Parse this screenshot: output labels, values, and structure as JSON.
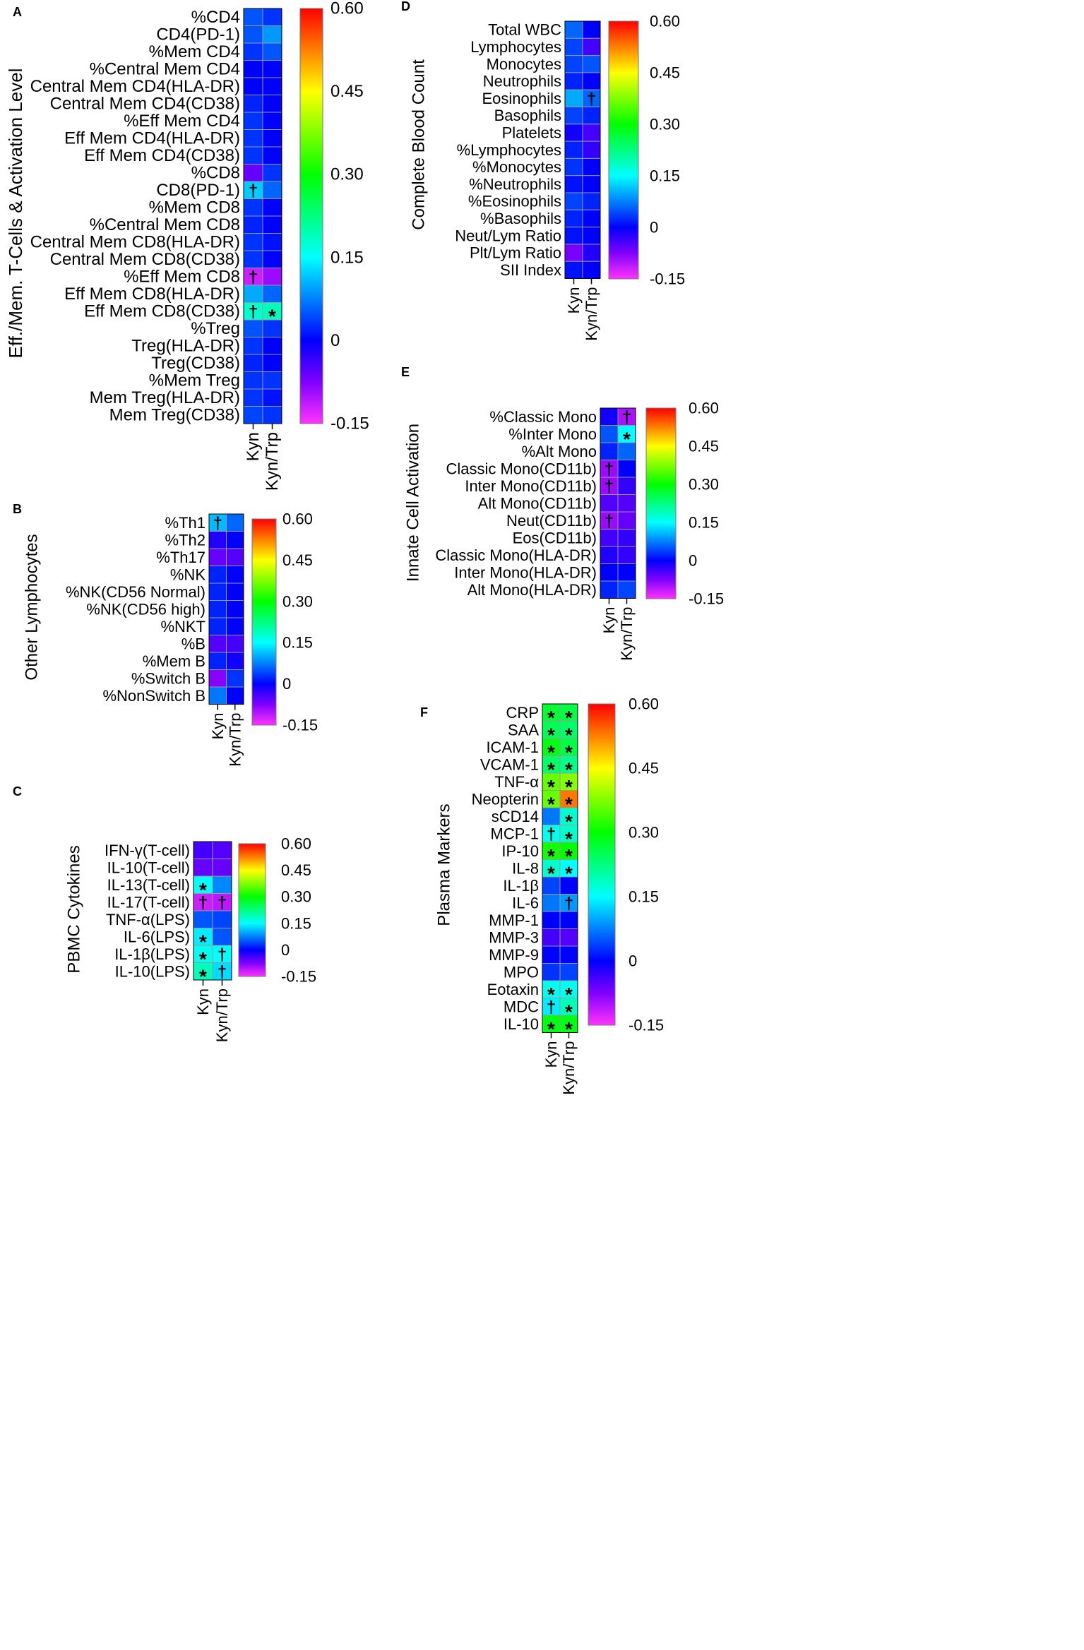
{
  "figure": {
    "colorbar": {
      "min": -0.15,
      "max": 0.6,
      "tick_labels": [
        "0.60",
        "0.45",
        "0.30",
        "0.15",
        "0",
        "-0.15"
      ],
      "tick_values": [
        0.6,
        0.45,
        0.3,
        0.15,
        0,
        -0.15
      ],
      "stops": [
        {
          "v": -0.15,
          "color": "#ff33ff"
        },
        {
          "v": -0.075,
          "color": "#8000ff"
        },
        {
          "v": 0.0,
          "color": "#0000ff"
        },
        {
          "v": 0.075,
          "color": "#0080ff"
        },
        {
          "v": 0.15,
          "color": "#00ffff"
        },
        {
          "v": 0.3,
          "color": "#00ff00"
        },
        {
          "v": 0.45,
          "color": "#ffff00"
        },
        {
          "v": 0.525,
          "color": "#ff8000"
        },
        {
          "v": 0.6,
          "color": "#ff0000"
        }
      ]
    },
    "cell_border_color": "#999999"
  },
  "chart_data": [
    {
      "type": "heatmap",
      "panel": "A",
      "ylabel": "Eff./Mem. T-Cells & Activation Level",
      "columns": [
        "Kyn",
        "Kyn/Trp"
      ],
      "rows": [
        "%CD4",
        "CD4(PD-1)",
        "%Mem CD4",
        "%Central Mem CD4",
        "Central Mem CD4(HLA-DR)",
        "Central Mem CD4(CD38)",
        "%Eff Mem CD4",
        "Eff Mem CD4(HLA-DR)",
        "Eff Mem CD4(CD38)",
        "%CD8",
        "CD8(PD-1)",
        "%Mem CD8",
        "%Central Mem CD8",
        "Central Mem CD8(HLA-DR)",
        "Central Mem CD8(CD38)",
        "%Eff Mem CD8",
        "Eff Mem CD8(HLA-DR)",
        "Eff Mem CD8(CD38)",
        "%Treg",
        "Treg(HLA-DR)",
        "Treg(CD38)",
        "%Mem Treg",
        "Mem Treg(HLA-DR)",
        "Mem Treg(CD38)"
      ],
      "values": [
        [
          0.05,
          0.03
        ],
        [
          0.05,
          0.09
        ],
        [
          0.03,
          0.05
        ],
        [
          0.0,
          0.0
        ],
        [
          0.0,
          0.0
        ],
        [
          0.02,
          0.0
        ],
        [
          0.03,
          0.0
        ],
        [
          0.03,
          0.0
        ],
        [
          0.03,
          0.0
        ],
        [
          -0.06,
          0.03
        ],
        [
          0.12,
          0.06
        ],
        [
          0.03,
          0.0
        ],
        [
          0.02,
          0.0
        ],
        [
          0.03,
          0.01
        ],
        [
          0.03,
          0.0
        ],
        [
          -0.12,
          -0.09
        ],
        [
          0.1,
          0.06
        ],
        [
          0.18,
          0.19
        ],
        [
          0.05,
          0.03
        ],
        [
          0.03,
          0.0
        ],
        [
          0.02,
          0.0
        ],
        [
          0.03,
          0.03
        ],
        [
          0.03,
          0.01
        ],
        [
          0.04,
          0.03
        ]
      ],
      "markers": [
        [
          "",
          ""
        ],
        [
          "",
          ""
        ],
        [
          "",
          ""
        ],
        [
          "",
          ""
        ],
        [
          "",
          ""
        ],
        [
          "",
          ""
        ],
        [
          "",
          ""
        ],
        [
          "",
          ""
        ],
        [
          "",
          ""
        ],
        [
          "",
          ""
        ],
        [
          "†",
          ""
        ],
        [
          "",
          ""
        ],
        [
          "",
          ""
        ],
        [
          "",
          ""
        ],
        [
          "",
          ""
        ],
        [
          "†",
          ""
        ],
        [
          "",
          ""
        ],
        [
          "†",
          "*"
        ],
        [
          "",
          ""
        ],
        [
          "",
          ""
        ],
        [
          "",
          ""
        ],
        [
          "",
          ""
        ],
        [
          "",
          ""
        ],
        [
          "",
          ""
        ]
      ]
    },
    {
      "type": "heatmap",
      "panel": "B",
      "ylabel": "Other Lymphocytes",
      "columns": [
        "Kyn",
        "Kyn/Trp"
      ],
      "rows": [
        "%Th1",
        "%Th2",
        "%Th17",
        "%NK",
        "%NK(CD56 Normal)",
        "%NK(CD56 high)",
        "%NKT",
        "%B",
        "%Mem B",
        "%Switch B",
        "%NonSwitch B"
      ],
      "values": [
        [
          0.11,
          0.06
        ],
        [
          -0.02,
          0.0
        ],
        [
          -0.06,
          -0.05
        ],
        [
          0.02,
          0.0
        ],
        [
          0.02,
          0.0
        ],
        [
          0.02,
          0.0
        ],
        [
          0.02,
          0.0
        ],
        [
          -0.05,
          -0.04
        ],
        [
          0.02,
          -0.01
        ],
        [
          -0.08,
          0.03
        ],
        [
          0.07,
          0.0
        ]
      ],
      "markers": [
        [
          "†",
          ""
        ],
        [
          "",
          ""
        ],
        [
          "",
          ""
        ],
        [
          "",
          ""
        ],
        [
          "",
          ""
        ],
        [
          "",
          ""
        ],
        [
          "",
          ""
        ],
        [
          "",
          ""
        ],
        [
          "",
          ""
        ],
        [
          "",
          ""
        ],
        [
          "",
          ""
        ]
      ]
    },
    {
      "type": "heatmap",
      "panel": "C",
      "ylabel": "PBMC Cytokines",
      "columns": [
        "Kyn",
        "Kyn/Trp"
      ],
      "rows": [
        "IFN-γ(T-cell)",
        "IL-10(T-cell)",
        "IL-13(T-cell)",
        "IL-17(T-cell)",
        "TNF-α(LPS)",
        "IL-6(LPS)",
        "IL-1β(LPS)",
        "IL-10(LPS)"
      ],
      "values": [
        [
          -0.04,
          -0.05
        ],
        [
          -0.06,
          -0.06
        ],
        [
          0.15,
          0.08
        ],
        [
          -0.12,
          -0.11
        ],
        [
          0.05,
          0.04
        ],
        [
          0.14,
          0.05
        ],
        [
          0.16,
          0.15
        ],
        [
          0.19,
          0.13
        ]
      ],
      "markers": [
        [
          "",
          ""
        ],
        [
          "",
          ""
        ],
        [
          "*",
          ""
        ],
        [
          "†",
          "†"
        ],
        [
          "",
          ""
        ],
        [
          "*",
          ""
        ],
        [
          "*",
          "†"
        ],
        [
          "*",
          "†"
        ]
      ]
    },
    {
      "type": "heatmap",
      "panel": "D",
      "ylabel": "Complete Blood Count",
      "columns": [
        "Kyn",
        "Kyn/Trp"
      ],
      "rows": [
        "Total WBC",
        "Lymphocytes",
        "Monocytes",
        "Neutrophils",
        "Eosinophils",
        "Basophils",
        "Platelets",
        "%Lymphocytes",
        "%Monocytes",
        "%Neutrophils",
        "%Eosinophils",
        "%Basophils",
        "Neut/Lym Ratio",
        "Plt/Lym Ratio",
        "SII Index"
      ],
      "values": [
        [
          0.06,
          0.0
        ],
        [
          0.04,
          -0.04
        ],
        [
          0.04,
          0.05
        ],
        [
          0.02,
          0.0
        ],
        [
          0.1,
          0.06
        ],
        [
          0.04,
          0.02
        ],
        [
          -0.01,
          -0.04
        ],
        [
          0.02,
          -0.03
        ],
        [
          0.03,
          0.0
        ],
        [
          0.01,
          0.0
        ],
        [
          0.04,
          0.02
        ],
        [
          0.02,
          0.0
        ],
        [
          0.01,
          0.0
        ],
        [
          -0.07,
          -0.02
        ],
        [
          0.01,
          0.0
        ]
      ],
      "markers": [
        [
          "",
          ""
        ],
        [
          "",
          ""
        ],
        [
          "",
          ""
        ],
        [
          "",
          ""
        ],
        [
          "",
          "†"
        ],
        [
          "",
          ""
        ],
        [
          "",
          ""
        ],
        [
          "",
          ""
        ],
        [
          "",
          ""
        ],
        [
          "",
          ""
        ],
        [
          "",
          ""
        ],
        [
          "",
          ""
        ],
        [
          "",
          ""
        ],
        [
          "",
          ""
        ],
        [
          "",
          ""
        ]
      ]
    },
    {
      "type": "heatmap",
      "panel": "E",
      "ylabel": "Innate Cell Activation",
      "columns": [
        "Kyn",
        "Kyn/Trp"
      ],
      "rows": [
        "%Classic Mono",
        "%Inter Mono",
        "%Alt Mono",
        "Classic Mono(CD11b)",
        "Inter Mono(CD11b)",
        "Alt Mono(CD11b)",
        "Neut(CD11b)",
        "Eos(CD11b)",
        "Classic Mono(HLA-DR)",
        "Inter Mono(HLA-DR)",
        "Alt Mono(HLA-DR)"
      ],
      "values": [
        [
          -0.01,
          -0.1
        ],
        [
          0.05,
          0.15
        ],
        [
          0.02,
          0.06
        ],
        [
          -0.09,
          0.0
        ],
        [
          -0.09,
          -0.03
        ],
        [
          -0.05,
          -0.05
        ],
        [
          -0.09,
          -0.06
        ],
        [
          -0.04,
          -0.03
        ],
        [
          -0.02,
          -0.03
        ],
        [
          0.0,
          0.0
        ],
        [
          0.02,
          0.04
        ]
      ],
      "markers": [
        [
          "",
          "†"
        ],
        [
          "",
          "*"
        ],
        [
          "",
          ""
        ],
        [
          "†",
          ""
        ],
        [
          "†",
          ""
        ],
        [
          "",
          ""
        ],
        [
          "†",
          ""
        ],
        [
          "",
          ""
        ],
        [
          "",
          ""
        ],
        [
          "",
          ""
        ],
        [
          "",
          ""
        ]
      ]
    },
    {
      "type": "heatmap",
      "panel": "F",
      "ylabel": "Plasma Markers",
      "columns": [
        "Kyn",
        "Kyn/Trp"
      ],
      "rows": [
        "CRP",
        "SAA",
        "ICAM-1",
        "VCAM-1",
        "TNF-α",
        "Neopterin",
        "sCD14",
        "MCP-1",
        "IP-10",
        "IL-8",
        "IL-1β",
        "IL-6",
        "MMP-1",
        "MMP-3",
        "MMP-9",
        "MPO",
        "Eotaxin",
        "MDC",
        "IL-10"
      ],
      "values": [
        [
          0.27,
          0.26
        ],
        [
          0.25,
          0.24
        ],
        [
          0.29,
          0.26
        ],
        [
          0.24,
          0.22
        ],
        [
          0.36,
          0.38
        ],
        [
          0.36,
          0.53
        ],
        [
          0.07,
          0.18
        ],
        [
          0.16,
          0.18
        ],
        [
          0.31,
          0.3
        ],
        [
          0.18,
          0.15
        ],
        [
          0.04,
          0.0
        ],
        [
          0.07,
          0.09
        ],
        [
          0.0,
          0.0
        ],
        [
          -0.04,
          -0.05
        ],
        [
          0.0,
          0.0
        ],
        [
          0.03,
          0.04
        ],
        [
          0.16,
          0.16
        ],
        [
          0.14,
          0.19
        ],
        [
          0.29,
          0.29
        ]
      ],
      "markers": [
        [
          "*",
          "*"
        ],
        [
          "*",
          "*"
        ],
        [
          "*",
          "*"
        ],
        [
          "*",
          "*"
        ],
        [
          "*",
          "*"
        ],
        [
          "*",
          "*"
        ],
        [
          "",
          "*"
        ],
        [
          "†",
          "*"
        ],
        [
          "*",
          "*"
        ],
        [
          "*",
          "*"
        ],
        [
          "",
          ""
        ],
        [
          "",
          "†"
        ],
        [
          "",
          ""
        ],
        [
          "",
          ""
        ],
        [
          "",
          ""
        ],
        [
          "",
          ""
        ],
        [
          "*",
          "*"
        ],
        [
          "†",
          "*"
        ],
        [
          "*",
          "*"
        ]
      ]
    }
  ]
}
